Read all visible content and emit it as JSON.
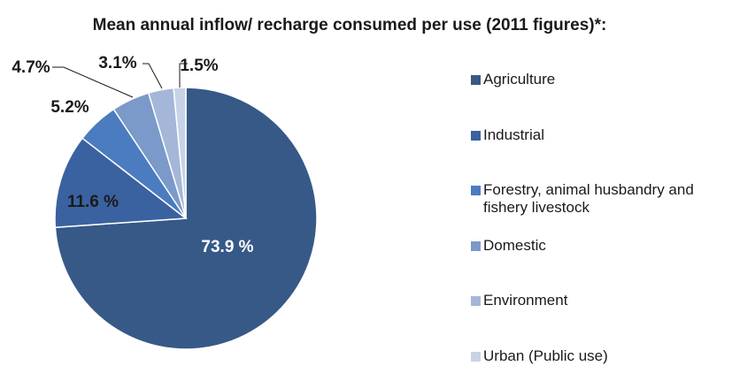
{
  "chart_data": {
    "type": "pie",
    "title": "Mean annual inflow/ recharge consumed per use (2011 figures)*:",
    "slices": [
      {
        "name": "Agriculture",
        "label": "73.9 %",
        "value": 73.9,
        "color": "#365987"
      },
      {
        "name": "Industrial",
        "label": "11.6 %",
        "value": 11.6,
        "color": "#3a62a0"
      },
      {
        "name": "Forestry, animal husbandry and fishery livestock",
        "label": "5.2%",
        "value": 5.2,
        "color": "#4a7cbf"
      },
      {
        "name": "Domestic",
        "label": "4.7%",
        "value": 4.7,
        "color": "#7b99c9"
      },
      {
        "name": "Environment",
        "label": "3.1%",
        "value": 3.1,
        "color": "#a4b7d9"
      },
      {
        "name": "Urban (Public use)",
        "label": "1.5%",
        "value": 1.5,
        "color": "#c8d3e8"
      }
    ],
    "start_angle": "12 o'clock",
    "direction": "clockwise",
    "legend_position": "right"
  }
}
